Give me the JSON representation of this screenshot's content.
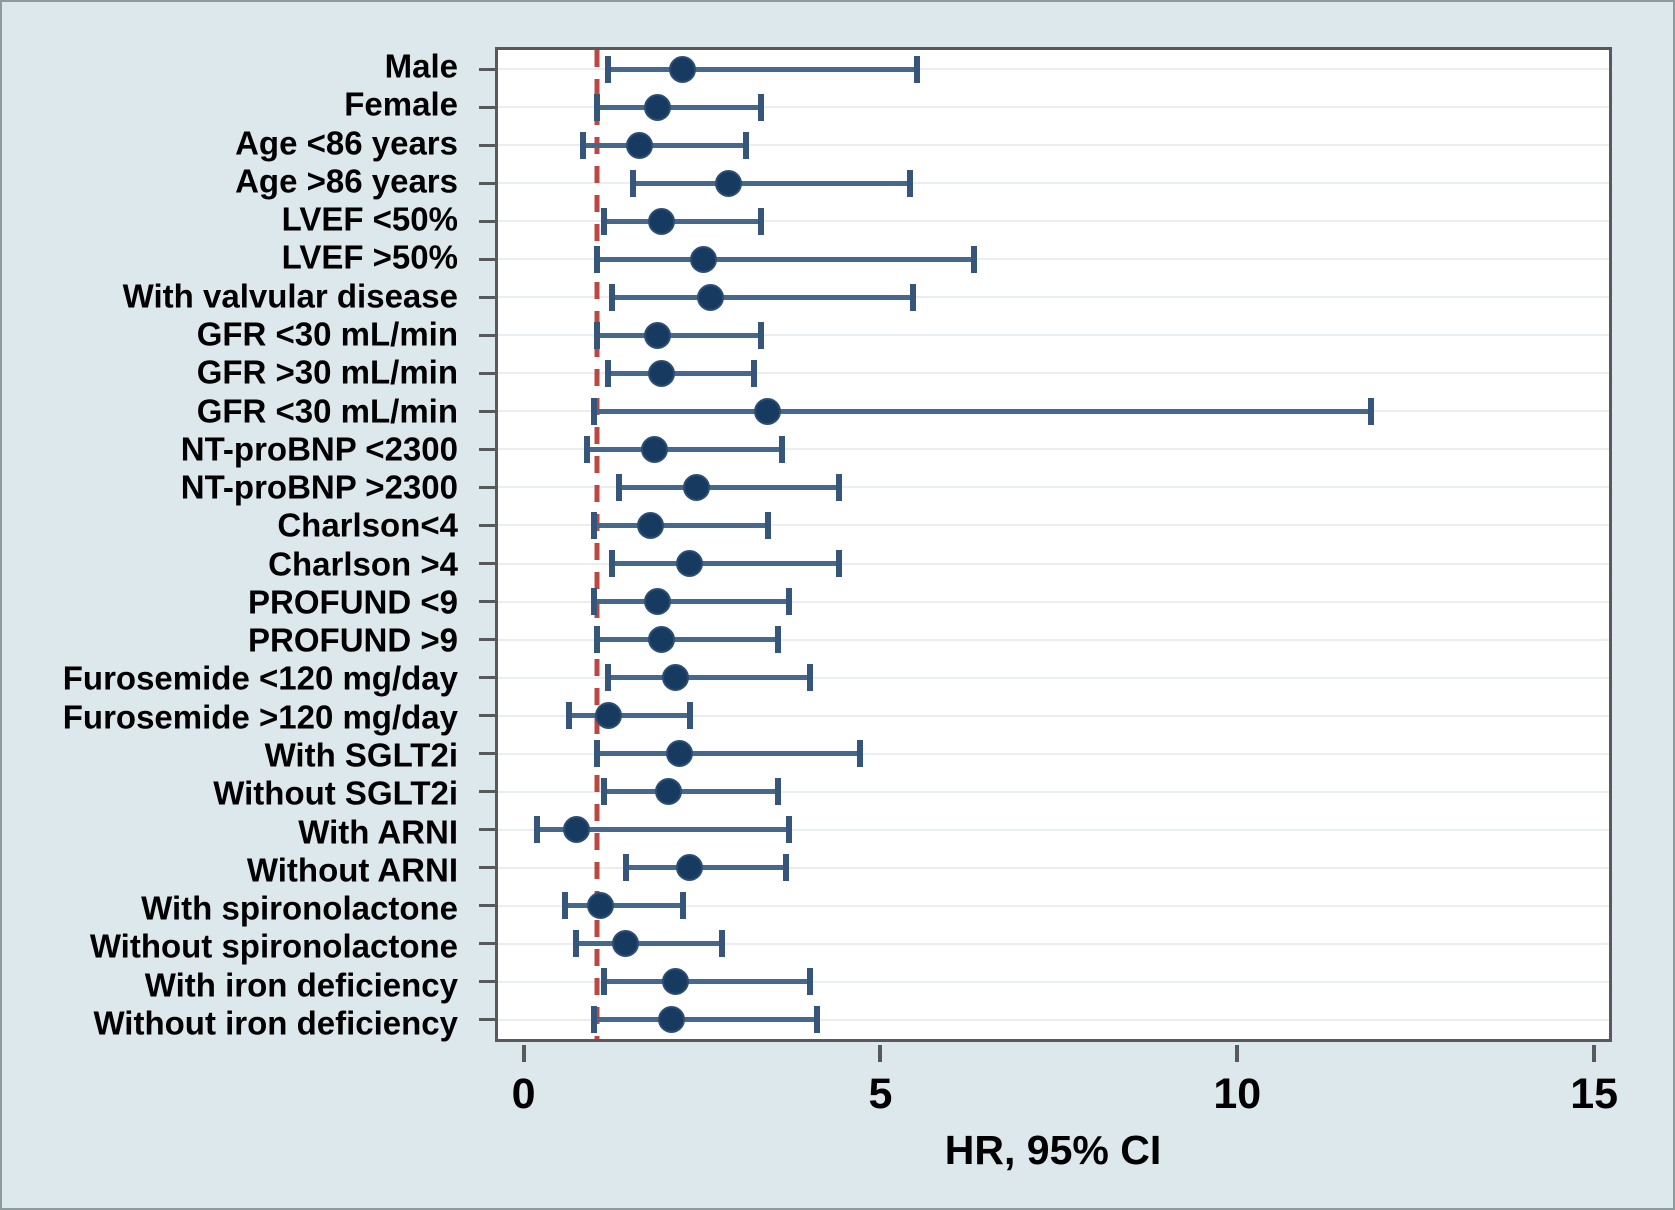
{
  "colors": {
    "background": "#dde8ec",
    "plot_background": "#ffffff",
    "frame": "#58595b",
    "gridline": "#eaeef0",
    "ci_bar": "#45688c",
    "ci_cap": "#35567a",
    "point": "#173a61",
    "reference_line": "#bc4740",
    "text": "#000000"
  },
  "chart_data": {
    "type": "forest",
    "title": "",
    "xlabel": "HR, 95% CI",
    "ylabel": "",
    "xlim": [
      -0.4,
      15.25
    ],
    "x_ticks": [
      0,
      5,
      10,
      15
    ],
    "x_tick_labels": [
      "0",
      "5",
      "10",
      "15"
    ],
    "grid": "horizontal-per-row",
    "reference_line_x": 1,
    "rows": [
      {
        "label": "Male",
        "hr": 2.2,
        "lo": 1.15,
        "hi": 5.5
      },
      {
        "label": "Female",
        "hr": 1.85,
        "lo": 1.0,
        "hi": 3.3
      },
      {
        "label": "Age <86 years",
        "hr": 1.6,
        "lo": 0.8,
        "hi": 3.1
      },
      {
        "label": "Age >86 years",
        "hr": 2.85,
        "lo": 1.5,
        "hi": 5.4
      },
      {
        "label": "LVEF <50%",
        "hr": 1.9,
        "lo": 1.1,
        "hi": 3.3
      },
      {
        "label": "LVEF >50%",
        "hr": 2.5,
        "lo": 1.0,
        "hi": 6.3
      },
      {
        "label": "With valvular disease",
        "hr": 2.6,
        "lo": 1.2,
        "hi": 5.45
      },
      {
        "label": "GFR <30 mL/min",
        "hr": 1.85,
        "lo": 1.0,
        "hi": 3.3
      },
      {
        "label": "GFR >30 mL/min",
        "hr": 1.9,
        "lo": 1.15,
        "hi": 3.2
      },
      {
        "label": "GFR <30 mL/min",
        "hr": 3.4,
        "lo": 0.95,
        "hi": 11.9
      },
      {
        "label": "NT-proBNP <2300",
        "hr": 1.8,
        "lo": 0.85,
        "hi": 3.6
      },
      {
        "label": "NT-proBNP >2300",
        "hr": 2.4,
        "lo": 1.3,
        "hi": 4.4
      },
      {
        "label": "Charlson<4",
        "hr": 1.75,
        "lo": 0.95,
        "hi": 3.4
      },
      {
        "label": "Charlson >4",
        "hr": 2.3,
        "lo": 1.2,
        "hi": 4.4
      },
      {
        "label": "PROFUND <9",
        "hr": 1.85,
        "lo": 0.95,
        "hi": 3.7
      },
      {
        "label": "PROFUND >9",
        "hr": 1.9,
        "lo": 1.0,
        "hi": 3.55
      },
      {
        "label": "Furosemide <120 mg/day",
        "hr": 2.1,
        "lo": 1.15,
        "hi": 4.0
      },
      {
        "label": "Furosemide >120 mg/day",
        "hr": 1.15,
        "lo": 0.6,
        "hi": 2.3
      },
      {
        "label": "With SGLT2i",
        "hr": 2.15,
        "lo": 1.0,
        "hi": 4.7
      },
      {
        "label": "Without SGLT2i",
        "hr": 2.0,
        "lo": 1.1,
        "hi": 3.55
      },
      {
        "label": "With ARNI",
        "hr": 0.7,
        "lo": 0.15,
        "hi": 3.7
      },
      {
        "label": "Without ARNI",
        "hr": 2.3,
        "lo": 1.4,
        "hi": 3.65
      },
      {
        "label": "With spironolactone",
        "hr": 1.05,
        "lo": 0.55,
        "hi": 2.2
      },
      {
        "label": "Without spironolactone",
        "hr": 1.4,
        "lo": 0.7,
        "hi": 2.75
      },
      {
        "label": "With iron deficiency",
        "hr": 2.1,
        "lo": 1.1,
        "hi": 4.0
      },
      {
        "label": "Without iron deficiency",
        "hr": 2.05,
        "lo": 0.95,
        "hi": 4.1
      }
    ]
  }
}
